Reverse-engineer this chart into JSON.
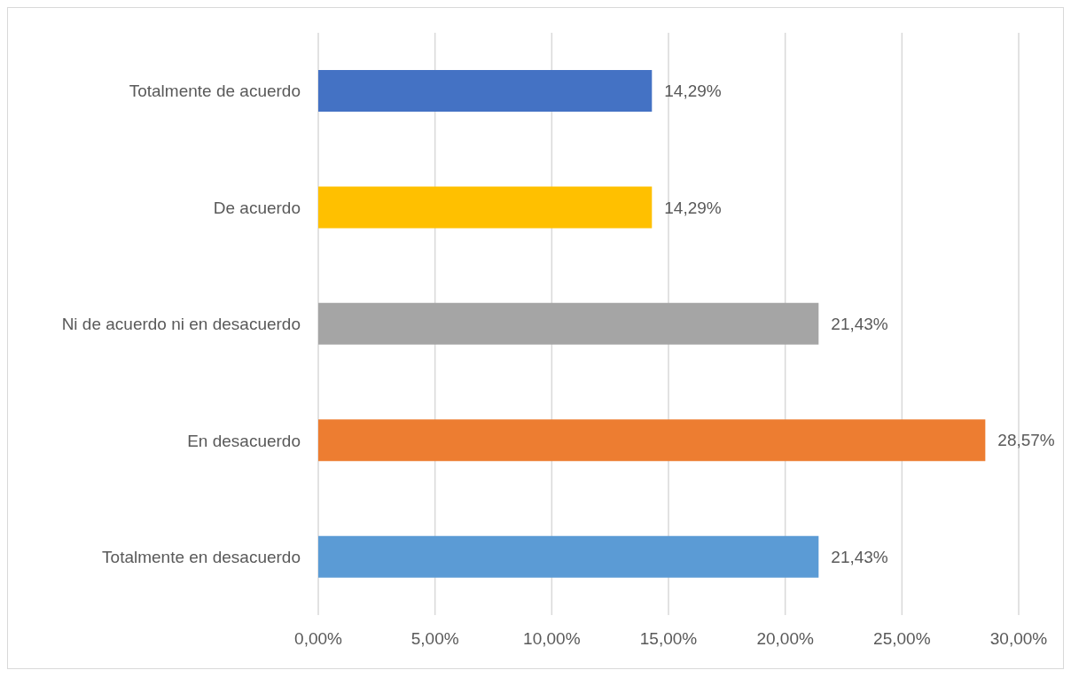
{
  "chart_data": {
    "type": "bar",
    "orientation": "horizontal",
    "categories": [
      "Totalmente de acuerdo",
      "De acuerdo",
      "Ni de acuerdo ni en desacuerdo",
      "En desacuerdo",
      "Totalmente en desacuerdo"
    ],
    "values": [
      14.29,
      14.29,
      21.43,
      28.57,
      21.43
    ],
    "colors": [
      "#4472c4",
      "#ffc000",
      "#a5a5a5",
      "#ed7d31",
      "#5b9bd5"
    ],
    "value_labels": [
      "14,29%",
      "14,29%",
      "21,43%",
      "28,57%",
      "21,43%"
    ],
    "xlim": [
      0,
      30
    ],
    "xticks": [
      {
        "value": 0,
        "label": "0,00%"
      },
      {
        "value": 5,
        "label": "5,00%"
      },
      {
        "value": 10,
        "label": "10,00%"
      },
      {
        "value": 15,
        "label": "15,00%"
      },
      {
        "value": 20,
        "label": "20,00%"
      },
      {
        "value": 25,
        "label": "25,00%"
      },
      {
        "value": 30,
        "label": "30,00%"
      }
    ],
    "grid": "x"
  }
}
